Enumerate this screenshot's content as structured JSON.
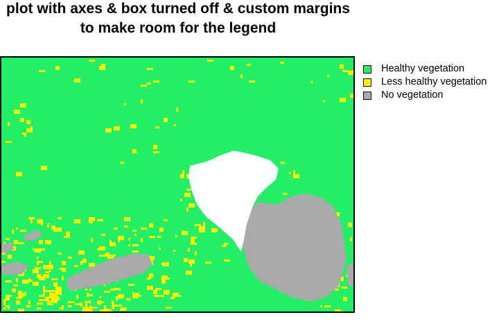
{
  "chart_data": {
    "type": "heatmap",
    "title_lines": [
      "plot with axes & box turned off & custom margins",
      "to make room for the legend"
    ],
    "xlabel": "",
    "ylabel": "",
    "axes_visible": false,
    "legend_placement": "right",
    "classes": [
      {
        "name": "Healthy vegetation",
        "color": "#22ee66"
      },
      {
        "name": "Less healthy vegetation",
        "color": "#ffee00"
      },
      {
        "name": "No vegetation",
        "color": "#aaaaaa"
      }
    ],
    "no_data_color": "#ffffff"
  }
}
